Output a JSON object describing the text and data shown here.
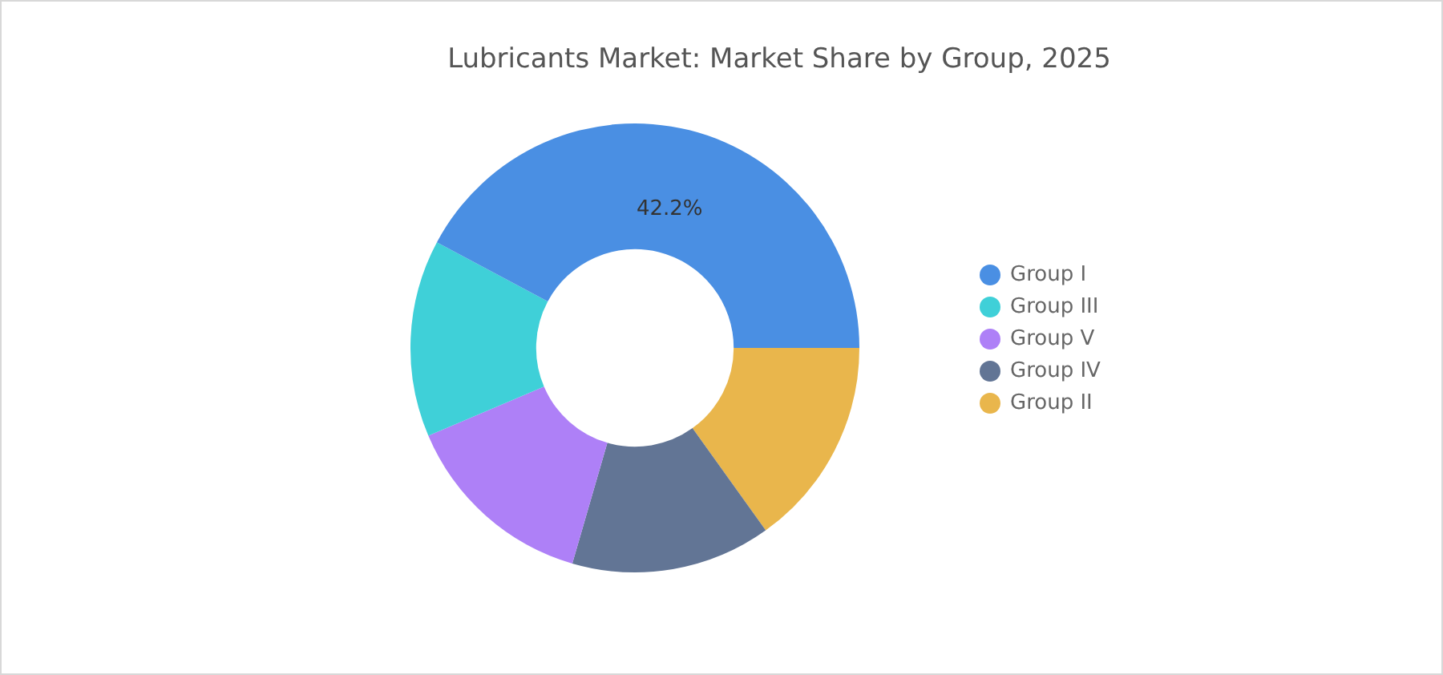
{
  "chart_data": {
    "type": "donut",
    "title": "Lubricants Market: Market Share by Group, 2025",
    "categories": [
      "Group I",
      "Group III",
      "Group V",
      "Group IV",
      "Group II"
    ],
    "values": [
      42.2,
      14.2,
      14.1,
      14.4,
      15.1
    ],
    "colors": [
      "#4a8fe3",
      "#3fd0d8",
      "#ae80f7",
      "#627595",
      "#e9b64c"
    ],
    "value_labels": [
      "42.2%",
      null,
      null,
      null,
      null
    ],
    "legend": "right"
  }
}
